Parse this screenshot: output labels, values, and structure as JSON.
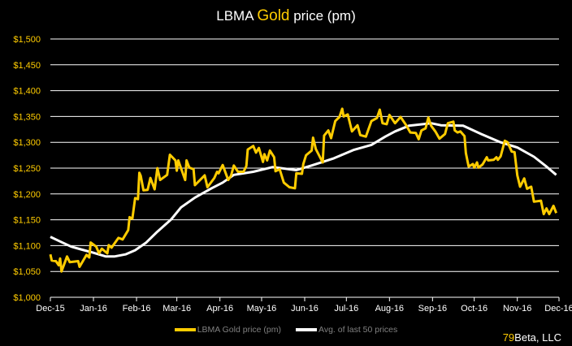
{
  "title": {
    "prefix": "LBMA ",
    "highlight": "Gold",
    "suffix": " price (pm)"
  },
  "footer": {
    "highlight": "79",
    "rest": "Beta, LLC"
  },
  "colors": {
    "gold": "#FFCC00",
    "avg": "#FFFFFF",
    "background": "#000000",
    "grid": "#FFFFFF",
    "y_labels": "#FFCC00",
    "x_labels": "#FFFFFF"
  },
  "chart_data": {
    "type": "line",
    "title": "LBMA Gold price (pm)",
    "xlim": [
      "2015-12-01",
      "2016-12-01"
    ],
    "ylim": [
      1000,
      1500
    ],
    "grid": true,
    "legend_placement": "bottom",
    "x_tick_labels": [
      "Dec-15",
      "Jan-16",
      "Feb-16",
      "Mar-16",
      "Apr-16",
      "May-16",
      "Jun-16",
      "Jul-16",
      "Aug-16",
      "Sep-16",
      "Oct-16",
      "Nov-16",
      "Dec-16"
    ],
    "x_ticks": [
      "2015-12-01",
      "2016-01-01",
      "2016-02-01",
      "2016-03-01",
      "2016-04-01",
      "2016-05-01",
      "2016-06-01",
      "2016-07-01",
      "2016-08-01",
      "2016-09-01",
      "2016-10-01",
      "2016-11-01",
      "2016-12-01"
    ],
    "y_tick_labels": [
      "$1,000",
      "$1,050",
      "$1,100",
      "$1,150",
      "$1,200",
      "$1,250",
      "$1,300",
      "$1,350",
      "$1,400",
      "$1,450",
      "$1,500"
    ],
    "y_ticks": [
      1000,
      1050,
      1100,
      1150,
      1200,
      1250,
      1300,
      1350,
      1400,
      1450,
      1500
    ],
    "series": [
      {
        "name": "LBMA Gold price (pm)",
        "color": "#FFCC00",
        "points": [
          [
            "2015-12-01",
            1083
          ],
          [
            "2015-12-02",
            1071
          ],
          [
            "2015-12-05",
            1070
          ],
          [
            "2015-12-07",
            1062
          ],
          [
            "2015-12-08",
            1075
          ],
          [
            "2015-12-09",
            1050
          ],
          [
            "2015-12-13",
            1079
          ],
          [
            "2015-12-15",
            1068
          ],
          [
            "2015-12-21",
            1070
          ],
          [
            "2015-12-22",
            1059
          ],
          [
            "2015-12-27",
            1082
          ],
          [
            "2015-12-29",
            1077
          ],
          [
            "2015-12-30",
            1106
          ],
          [
            "2016-01-03",
            1098
          ],
          [
            "2016-01-05",
            1085
          ],
          [
            "2016-01-07",
            1094
          ],
          [
            "2016-01-11",
            1085
          ],
          [
            "2016-01-12",
            1101
          ],
          [
            "2016-01-14",
            1096
          ],
          [
            "2016-01-19",
            1115
          ],
          [
            "2016-01-22",
            1112
          ],
          [
            "2016-01-26",
            1130
          ],
          [
            "2016-01-27",
            1155
          ],
          [
            "2016-01-29",
            1152
          ],
          [
            "2016-01-31",
            1192
          ],
          [
            "2016-02-02",
            1190
          ],
          [
            "2016-02-03",
            1241
          ],
          [
            "2016-02-04",
            1235
          ],
          [
            "2016-02-06",
            1207
          ],
          [
            "2016-02-09",
            1208
          ],
          [
            "2016-02-11",
            1231
          ],
          [
            "2016-02-14",
            1209
          ],
          [
            "2016-02-16",
            1250
          ],
          [
            "2016-02-18",
            1227
          ],
          [
            "2016-02-23",
            1237
          ],
          [
            "2016-02-25",
            1276
          ],
          [
            "2016-02-29",
            1265
          ],
          [
            "2016-03-01",
            1245
          ],
          [
            "2016-03-02",
            1265
          ],
          [
            "2016-03-07",
            1227
          ],
          [
            "2016-03-08",
            1265
          ],
          [
            "2016-03-10",
            1251
          ],
          [
            "2016-03-13",
            1248
          ],
          [
            "2016-03-14",
            1217
          ],
          [
            "2016-03-21",
            1236
          ],
          [
            "2016-03-23",
            1213
          ],
          [
            "2016-03-28",
            1231
          ],
          [
            "2016-03-30",
            1243
          ],
          [
            "2016-03-31",
            1240
          ],
          [
            "2016-04-03",
            1256
          ],
          [
            "2016-04-07",
            1227
          ],
          [
            "2016-04-09",
            1235
          ],
          [
            "2016-04-11",
            1255
          ],
          [
            "2016-04-14",
            1243
          ],
          [
            "2016-04-18",
            1243
          ],
          [
            "2016-04-20",
            1254
          ],
          [
            "2016-04-21",
            1286
          ],
          [
            "2016-04-25",
            1293
          ],
          [
            "2016-04-27",
            1280
          ],
          [
            "2016-04-29",
            1289
          ],
          [
            "2016-05-02",
            1262
          ],
          [
            "2016-05-03",
            1277
          ],
          [
            "2016-05-05",
            1265
          ],
          [
            "2016-05-07",
            1284
          ],
          [
            "2016-05-10",
            1271
          ],
          [
            "2016-05-11",
            1244
          ],
          [
            "2016-05-14",
            1248
          ],
          [
            "2016-05-17",
            1222
          ],
          [
            "2016-05-21",
            1213
          ],
          [
            "2016-05-25",
            1211
          ],
          [
            "2016-05-26",
            1240
          ],
          [
            "2016-05-30",
            1239
          ],
          [
            "2016-05-31",
            1258
          ],
          [
            "2016-06-02",
            1275
          ],
          [
            "2016-06-06",
            1284
          ],
          [
            "2016-06-07",
            1309
          ],
          [
            "2016-06-09",
            1287
          ],
          [
            "2016-06-14",
            1261
          ],
          [
            "2016-06-15",
            1313
          ],
          [
            "2016-06-18",
            1323
          ],
          [
            "2016-06-20",
            1308
          ],
          [
            "2016-06-23",
            1341
          ],
          [
            "2016-06-26",
            1349
          ],
          [
            "2016-06-28",
            1365
          ],
          [
            "2016-06-29",
            1350
          ],
          [
            "2016-07-02",
            1354
          ],
          [
            "2016-07-05",
            1321
          ],
          [
            "2016-07-09",
            1333
          ],
          [
            "2016-07-11",
            1314
          ],
          [
            "2016-07-15",
            1311
          ],
          [
            "2016-07-19",
            1341
          ],
          [
            "2016-07-23",
            1347
          ],
          [
            "2016-07-25",
            1363
          ],
          [
            "2016-07-27",
            1337
          ],
          [
            "2016-07-30",
            1335
          ],
          [
            "2016-08-01",
            1353
          ],
          [
            "2016-08-05",
            1337
          ],
          [
            "2016-08-09",
            1349
          ],
          [
            "2016-08-13",
            1333
          ],
          [
            "2016-08-16",
            1319
          ],
          [
            "2016-08-20",
            1318
          ],
          [
            "2016-08-22",
            1306
          ],
          [
            "2016-08-24",
            1323
          ],
          [
            "2016-08-27",
            1327
          ],
          [
            "2016-08-29",
            1348
          ],
          [
            "2016-08-31",
            1332
          ],
          [
            "2016-09-03",
            1321
          ],
          [
            "2016-09-06",
            1307
          ],
          [
            "2016-09-10",
            1316
          ],
          [
            "2016-09-12",
            1337
          ],
          [
            "2016-09-16",
            1340
          ],
          [
            "2016-09-17",
            1323
          ],
          [
            "2016-09-19",
            1319
          ],
          [
            "2016-09-21",
            1321
          ],
          [
            "2016-09-24",
            1312
          ],
          [
            "2016-09-25",
            1279
          ],
          [
            "2016-09-27",
            1253
          ],
          [
            "2016-09-30",
            1258
          ],
          [
            "2016-10-01",
            1251
          ],
          [
            "2016-10-03",
            1261
          ],
          [
            "2016-10-04",
            1251
          ],
          [
            "2016-10-07",
            1257
          ],
          [
            "2016-10-10",
            1271
          ],
          [
            "2016-10-11",
            1265
          ],
          [
            "2016-10-15",
            1266
          ],
          [
            "2016-10-17",
            1271
          ],
          [
            "2016-10-18",
            1266
          ],
          [
            "2016-10-20",
            1273
          ],
          [
            "2016-10-23",
            1303
          ],
          [
            "2016-10-25",
            1300
          ],
          [
            "2016-10-28",
            1282
          ],
          [
            "2016-10-30",
            1281
          ],
          [
            "2016-11-01",
            1236
          ],
          [
            "2016-11-03",
            1214
          ],
          [
            "2016-11-06",
            1230
          ],
          [
            "2016-11-08",
            1210
          ],
          [
            "2016-11-11",
            1214
          ],
          [
            "2016-11-13",
            1185
          ],
          [
            "2016-11-18",
            1187
          ],
          [
            "2016-11-20",
            1161
          ],
          [
            "2016-11-22",
            1172
          ],
          [
            "2016-11-24",
            1161
          ],
          [
            "2016-11-27",
            1177
          ],
          [
            "2016-11-29",
            1163
          ]
        ]
      },
      {
        "name": "Avg. of last 50 prices",
        "color": "#FFFFFF",
        "points": [
          [
            "2015-12-01",
            1117
          ],
          [
            "2015-12-08",
            1108
          ],
          [
            "2015-12-16",
            1098
          ],
          [
            "2015-12-24",
            1092
          ],
          [
            "2015-12-31",
            1087
          ],
          [
            "2016-01-10",
            1079
          ],
          [
            "2016-01-16",
            1079
          ],
          [
            "2016-01-24",
            1083
          ],
          [
            "2016-01-31",
            1091
          ],
          [
            "2016-02-08",
            1106
          ],
          [
            "2016-02-16",
            1127
          ],
          [
            "2016-02-26",
            1151
          ],
          [
            "2016-03-04",
            1174
          ],
          [
            "2016-03-14",
            1193
          ],
          [
            "2016-03-26",
            1211
          ],
          [
            "2016-04-03",
            1222
          ],
          [
            "2016-04-11",
            1237
          ],
          [
            "2016-04-25",
            1243
          ],
          [
            "2016-05-09",
            1252
          ],
          [
            "2016-05-26",
            1246
          ],
          [
            "2016-06-07",
            1256
          ],
          [
            "2016-06-22",
            1269
          ],
          [
            "2016-07-06",
            1285
          ],
          [
            "2016-07-19",
            1295
          ],
          [
            "2016-07-29",
            1311
          ],
          [
            "2016-08-05",
            1321
          ],
          [
            "2016-08-15",
            1332
          ],
          [
            "2016-08-31",
            1337
          ],
          [
            "2016-09-07",
            1333
          ],
          [
            "2016-09-23",
            1332
          ],
          [
            "2016-10-06",
            1316
          ],
          [
            "2016-10-20",
            1300
          ],
          [
            "2016-11-01",
            1290
          ],
          [
            "2016-11-13",
            1272
          ],
          [
            "2016-11-22",
            1253
          ],
          [
            "2016-11-29",
            1237
          ]
        ]
      }
    ]
  }
}
